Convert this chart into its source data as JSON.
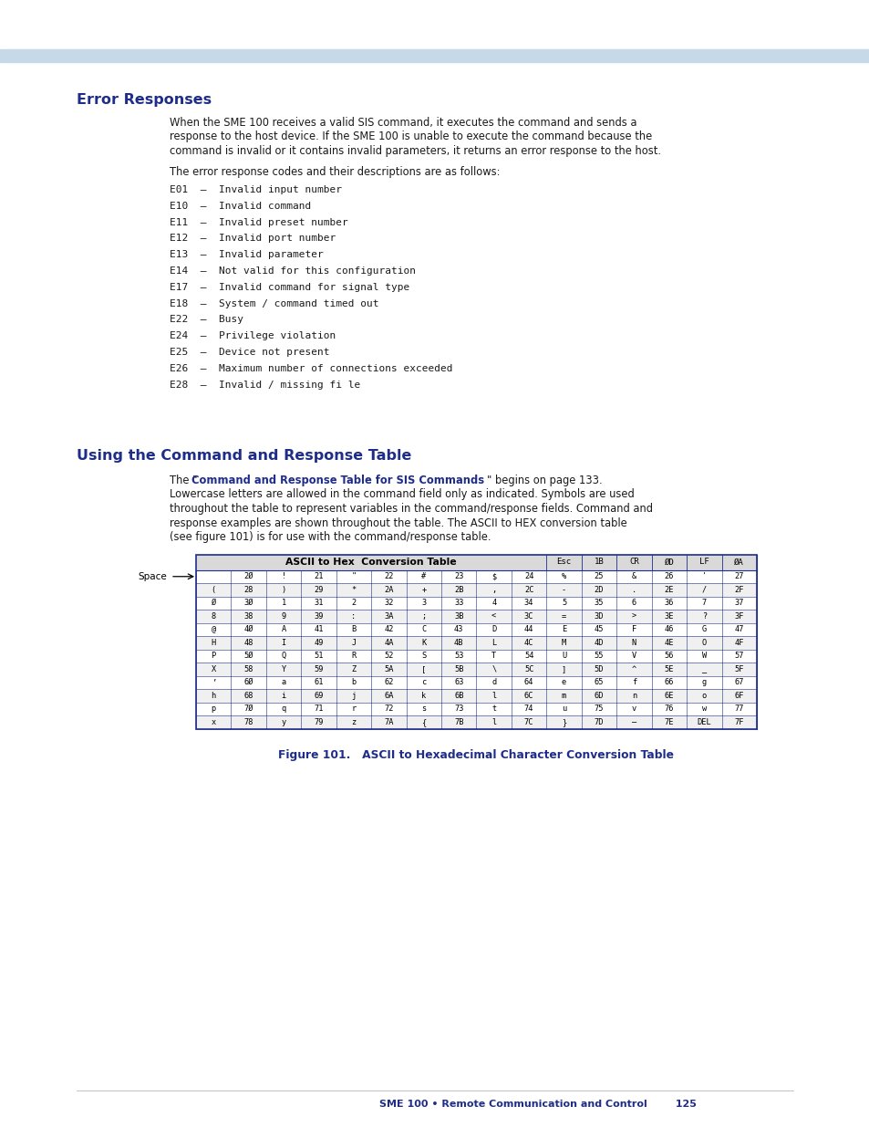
{
  "bg_color": "#ffffff",
  "header_bar_color": "#c5d9e8",
  "title1": "Error Responses",
  "title1_color": "#1f2d8a",
  "title2": "Using the Command and Response Table",
  "title2_color": "#1f2d8a",
  "footer_text": "SME 100 • Remote Communication and Control",
  "footer_page": "125",
  "footer_color": "#1f2d8a",
  "para1_lines": [
    "When the SME 100 receives a valid SIS command, it executes the command and sends a",
    "response to the host device. If the SME 100 is unable to execute the command because the",
    "command is invalid or it contains invalid parameters, it returns an error response to the host."
  ],
  "para2": "The error response codes and their descriptions are as follows:",
  "error_codes": [
    "E01  –  Invalid input number",
    "E10  –  Invalid command",
    "E11  –  Invalid preset number",
    "E12  –  Invalid port number",
    "E13  –  Invalid parameter",
    "E14  –  Not valid for this configuration",
    "E17  –  Invalid command for signal type",
    "E18  –  System / command timed out",
    "E22  –  Busy",
    "E24  –  Privilege violation",
    "E25  –  Device not present",
    "E26  –  Maximum number of connections exceeded",
    "E28  –  Invalid / missing fi le"
  ],
  "bold_phrase": "Command and Response Table for SIS Commands",
  "after_bold": "\" begins on page 133.",
  "para3_lines": [
    "Lowercase letters are allowed in the command field only as indicated. Symbols are used",
    "throughout the table to represent variables in the command/response fields. Command and",
    "response examples are shown throughout the table. The ASCII to HEX conversion table",
    "(see figure 101) is for use with the command/response table."
  ],
  "table_caption": "Figure 101.   ASCII to Hexadecimal Character Conversion Table",
  "table_border_color": "#1f2d8a",
  "table_header_bg": "#d9d9d9",
  "table_header_text": "ASCII to Hex  Conversion Table",
  "table_row_bg1": "#ffffff",
  "table_row_bg2": "#f0f0f0",
  "table_rows": [
    [
      " ",
      "2Ø",
      "!",
      "21",
      "\"",
      "22",
      "#",
      "23",
      "$",
      "24",
      "%",
      "25",
      "&",
      "26",
      "'",
      "27"
    ],
    [
      "(",
      "28",
      ")",
      "29",
      "*",
      "2A",
      "+",
      "2B",
      ",",
      "2C",
      "-",
      "2D",
      ".",
      "2E",
      "/",
      "2F"
    ],
    [
      "Ø",
      "3Ø",
      "1",
      "31",
      "2",
      "32",
      "3",
      "33",
      "4",
      "34",
      "5",
      "35",
      "6",
      "36",
      "7",
      "37"
    ],
    [
      "8",
      "38",
      "9",
      "39",
      ":",
      "3A",
      ";",
      "3B",
      "<",
      "3C",
      "=",
      "3D",
      ">",
      "3E",
      "?",
      "3F"
    ],
    [
      "@",
      "4Ø",
      "A",
      "41",
      "B",
      "42",
      "C",
      "43",
      "D",
      "44",
      "E",
      "45",
      "F",
      "46",
      "G",
      "47"
    ],
    [
      "H",
      "48",
      "I",
      "49",
      "J",
      "4A",
      "K",
      "4B",
      "L",
      "4C",
      "M",
      "4D",
      "N",
      "4E",
      "O",
      "4F"
    ],
    [
      "P",
      "5Ø",
      "Q",
      "51",
      "R",
      "52",
      "S",
      "53",
      "T",
      "54",
      "U",
      "55",
      "V",
      "56",
      "W",
      "57"
    ],
    [
      "X",
      "58",
      "Y",
      "59",
      "Z",
      "5A",
      "[",
      "5B",
      "\\",
      "5C",
      "]",
      "5D",
      "^",
      "5E",
      "_",
      "5F"
    ],
    [
      "’",
      "6Ø",
      "a",
      "61",
      "b",
      "62",
      "c",
      "63",
      "d",
      "64",
      "e",
      "65",
      "f",
      "66",
      "g",
      "67"
    ],
    [
      "h",
      "68",
      "i",
      "69",
      "j",
      "6A",
      "k",
      "6B",
      "l",
      "6C",
      "m",
      "6D",
      "n",
      "6E",
      "o",
      "6F"
    ],
    [
      "p",
      "7Ø",
      "q",
      "71",
      "r",
      "72",
      "s",
      "73",
      "t",
      "74",
      "u",
      "75",
      "v",
      "76",
      "w",
      "77"
    ],
    [
      "x",
      "78",
      "y",
      "79",
      "z",
      "7A",
      "{",
      "7B",
      "l",
      "7C",
      "}",
      "7D",
      "–",
      "7E",
      "DEL",
      "7F"
    ]
  ]
}
